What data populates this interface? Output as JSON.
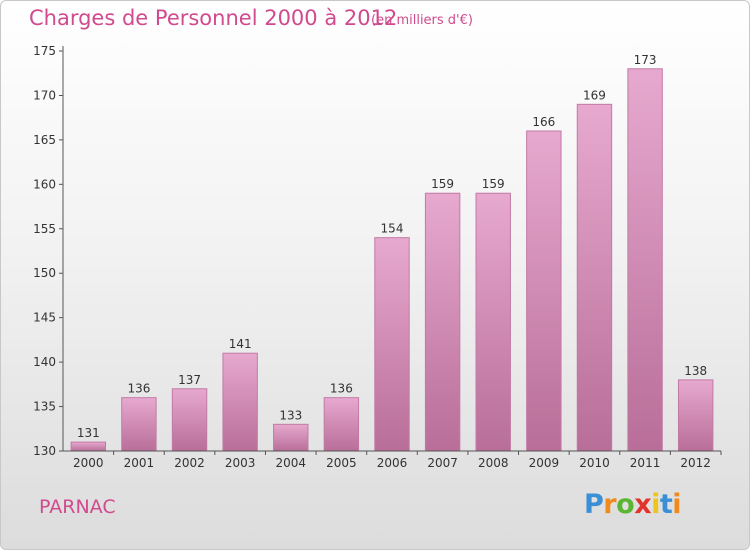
{
  "chart_data": {
    "type": "bar",
    "title": "Charges de Personnel 2000 à 2012",
    "subtitle": "(en milliers d'€)",
    "categories": [
      "2000",
      "2001",
      "2002",
      "2003",
      "2004",
      "2005",
      "2006",
      "2007",
      "2008",
      "2009",
      "2010",
      "2011",
      "2012"
    ],
    "values": [
      131,
      136,
      137,
      141,
      133,
      136,
      154,
      159,
      159,
      166,
      169,
      173,
      138
    ],
    "ylim": [
      130,
      175
    ],
    "yticks": [
      130,
      135,
      140,
      145,
      150,
      155,
      160,
      165,
      170,
      175
    ],
    "xlabel": "",
    "ylabel": "",
    "grid": false,
    "bar_color": "#d98ab8"
  },
  "place_name": "PARNAC",
  "logo": {
    "letters": [
      "P",
      "r",
      "o",
      "x",
      "i",
      "t",
      "i"
    ],
    "colors": [
      "#3a8fd6",
      "#f08a1c",
      "#5bb531",
      "#e2342a",
      "#f0c419",
      "#3a8fd6",
      "#f08a1c"
    ]
  }
}
